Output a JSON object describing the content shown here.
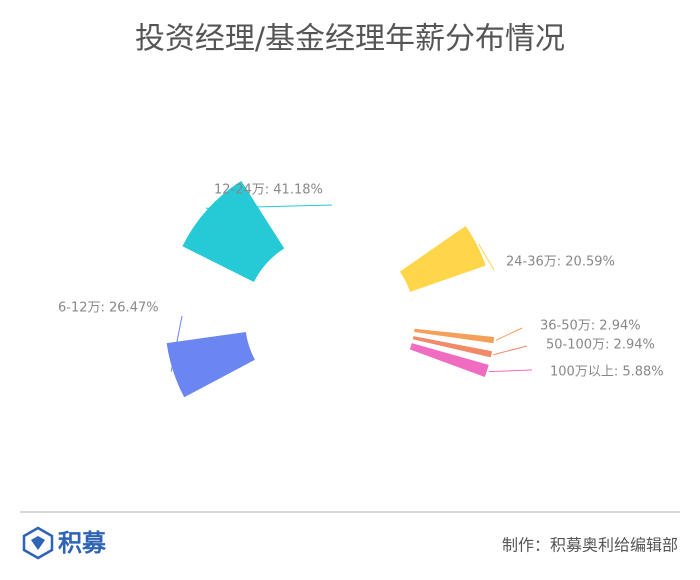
{
  "chart_data": {
    "type": "rose",
    "title": "投资经理/基金经理年薪分布情况",
    "categories": [
      "6-12万",
      "12-24万",
      "24-36万",
      "36-50万",
      "50-100万",
      "100万以上"
    ],
    "values": [
      26.47,
      41.18,
      20.59,
      2.94,
      2.94,
      5.88
    ],
    "value_labels": [
      "6-12万: 26.47%",
      "12-24万: 41.18%",
      "24-36万: 20.59%",
      "36-50万: 2.94%",
      "50-100万: 2.94%",
      "100万以上: 5.88%"
    ],
    "colors": [
      "#6b86f0",
      "#26c9d6",
      "#ffd54a",
      "#f5a05a",
      "#f08a68",
      "#f06cc0"
    ]
  },
  "footer": {
    "logo": "积募",
    "credit": "制作：积募奥利给编辑部"
  }
}
